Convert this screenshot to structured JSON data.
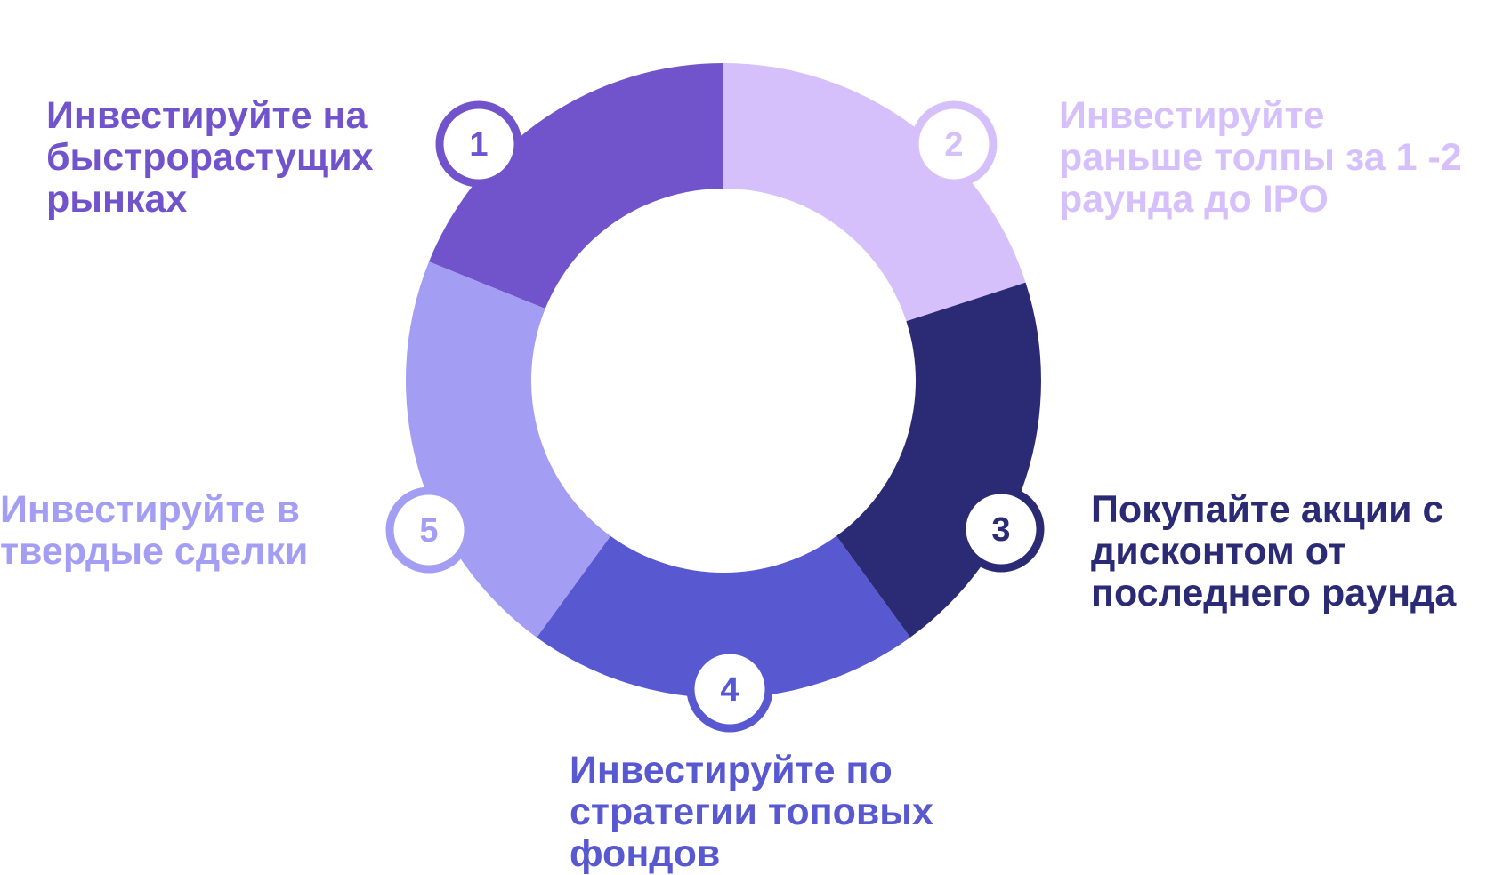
{
  "colors": {
    "background": "#ffffff",
    "step_1": "#7153cc",
    "step_2": "#d5c0fb",
    "step_3": "#2b2a74",
    "step_4": "#5858d0",
    "step_5": "#a39ef4"
  },
  "steps": [
    {
      "number": "1",
      "lines": [
        "Инвестируйте на",
        "быстрорастущих",
        "рынках"
      ]
    },
    {
      "number": "2",
      "lines": [
        "Инвестируйте",
        "раньше толпы за 1 -2",
        "раунда до IPO"
      ]
    },
    {
      "number": "3",
      "lines": [
        "Покупайте акции с",
        "дисконтом от",
        "последнего раунда"
      ]
    },
    {
      "number": "4",
      "lines": [
        "Инвестируйте по",
        "стратегии топовых",
        "фондов"
      ]
    },
    {
      "number": "5",
      "lines": [
        "Инвестируйте в",
        "твердые сделки"
      ]
    }
  ]
}
